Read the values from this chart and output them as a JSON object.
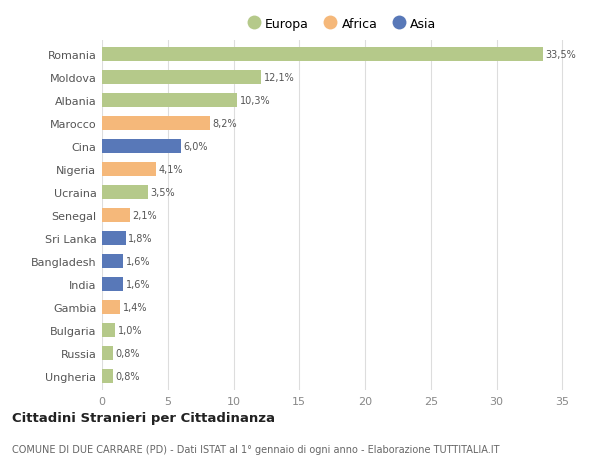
{
  "countries": [
    "Romania",
    "Moldova",
    "Albania",
    "Marocco",
    "Cina",
    "Nigeria",
    "Ucraina",
    "Senegal",
    "Sri Lanka",
    "Bangladesh",
    "India",
    "Gambia",
    "Bulgaria",
    "Russia",
    "Ungheria"
  ],
  "values": [
    33.5,
    12.1,
    10.3,
    8.2,
    6.0,
    4.1,
    3.5,
    2.1,
    1.8,
    1.6,
    1.6,
    1.4,
    1.0,
    0.8,
    0.8
  ],
  "labels": [
    "33,5%",
    "12,1%",
    "10,3%",
    "8,2%",
    "6,0%",
    "4,1%",
    "3,5%",
    "2,1%",
    "1,8%",
    "1,6%",
    "1,6%",
    "1,4%",
    "1,0%",
    "0,8%",
    "0,8%"
  ],
  "continents": [
    "Europa",
    "Europa",
    "Europa",
    "Africa",
    "Asia",
    "Africa",
    "Europa",
    "Africa",
    "Asia",
    "Asia",
    "Asia",
    "Africa",
    "Europa",
    "Europa",
    "Europa"
  ],
  "colors": {
    "Europa": "#b5c98a",
    "Africa": "#f5b87a",
    "Asia": "#5878b8"
  },
  "legend_labels": [
    "Europa",
    "Africa",
    "Asia"
  ],
  "legend_colors": [
    "#b5c98a",
    "#f5b87a",
    "#5878b8"
  ],
  "xlim": [
    0,
    36.5
  ],
  "xticks": [
    0,
    5,
    10,
    15,
    20,
    25,
    30,
    35
  ],
  "title": "Cittadini Stranieri per Cittadinanza",
  "subtitle": "COMUNE DI DUE CARRARE (PD) - Dati ISTAT al 1° gennaio di ogni anno - Elaborazione TUTTITALIA.IT",
  "background_color": "#ffffff",
  "plot_bg_color": "#ffffff",
  "grid_color": "#dddddd"
}
